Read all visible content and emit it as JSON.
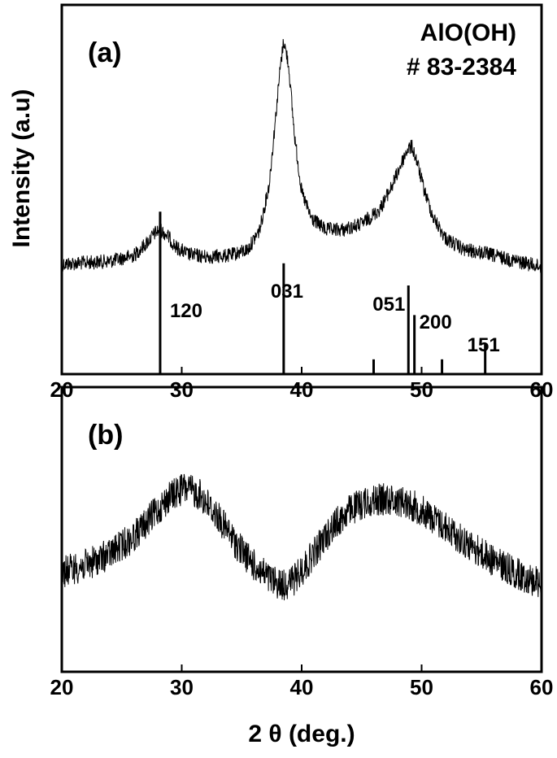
{
  "chart_data": [
    {
      "panel": "(a)",
      "type": "line",
      "ylabel": "Intensity (a.u)",
      "xlabel": "",
      "xlim": [
        20,
        60
      ],
      "x_ticks": [
        20,
        30,
        40,
        50,
        60
      ],
      "y_ticks": false,
      "annotation": [
        "AlO(OH)",
        "# 83-2384"
      ],
      "series": [
        {
          "style": "noisy",
          "x": [
            20,
            22,
            24,
            26,
            27,
            27.8,
            28.2,
            28.8,
            29.5,
            30.5,
            32,
            34,
            35.5,
            36.5,
            37.3,
            37.8,
            38.2,
            38.5,
            38.9,
            39.4,
            40,
            40.8,
            42,
            43.5,
            45,
            46.5,
            47.5,
            48.3,
            48.8,
            49.2,
            49.6,
            50.2,
            51,
            52,
            53.5,
            55,
            56.5,
            58,
            60
          ],
          "y": [
            10,
            10.5,
            11,
            13,
            17,
            21,
            22,
            20,
            16,
            13.5,
            12.5,
            13,
            15,
            22,
            38,
            60,
            78,
            88,
            80,
            55,
            35,
            26,
            22,
            22,
            24,
            29,
            37,
            45,
            50,
            51,
            46,
            36,
            26,
            19,
            15,
            14,
            12.5,
            11,
            9
          ]
        }
      ],
      "reference_lines": [
        {
          "x": 20.0,
          "h": 33
        },
        {
          "x": 28.2,
          "h": 44
        },
        {
          "x": 38.5,
          "h": 30
        },
        {
          "x": 46.0,
          "h": 4
        },
        {
          "x": 48.9,
          "h": 24
        },
        {
          "x": 49.4,
          "h": 16
        },
        {
          "x": 51.7,
          "h": 4
        },
        {
          "x": 55.3,
          "h": 8
        },
        {
          "x": 60.0,
          "h": 33
        }
      ],
      "peak_labels": [
        {
          "text": "120",
          "x": 28.2
        },
        {
          "text": "031",
          "x": 38.5
        },
        {
          "text": "051",
          "x": 48.9
        },
        {
          "text": "200",
          "x": 49.4
        },
        {
          "text": "151",
          "x": 55.3
        }
      ]
    },
    {
      "panel": "(b)",
      "type": "line",
      "xlabel": "2 θ (deg.)",
      "ylabel": "",
      "xlim": [
        20,
        60
      ],
      "x_ticks": [
        20,
        30,
        40,
        50,
        60
      ],
      "y_ticks": false,
      "series": [
        {
          "style": "noisy",
          "x": [
            20,
            22,
            24,
            26,
            27.5,
            29,
            30.2,
            31.5,
            33,
            34.5,
            36,
            37.5,
            38.5,
            39.5,
            41,
            42.5,
            44,
            45.5,
            47,
            48.5,
            50,
            52,
            54,
            56,
            58,
            60
          ],
          "y": [
            32,
            35,
            40,
            48,
            57,
            66,
            70,
            67,
            57,
            45,
            35,
            28,
            26,
            29,
            40,
            52,
            60,
            64,
            65,
            64,
            60,
            52,
            44,
            37,
            31,
            27
          ]
        }
      ]
    }
  ]
}
